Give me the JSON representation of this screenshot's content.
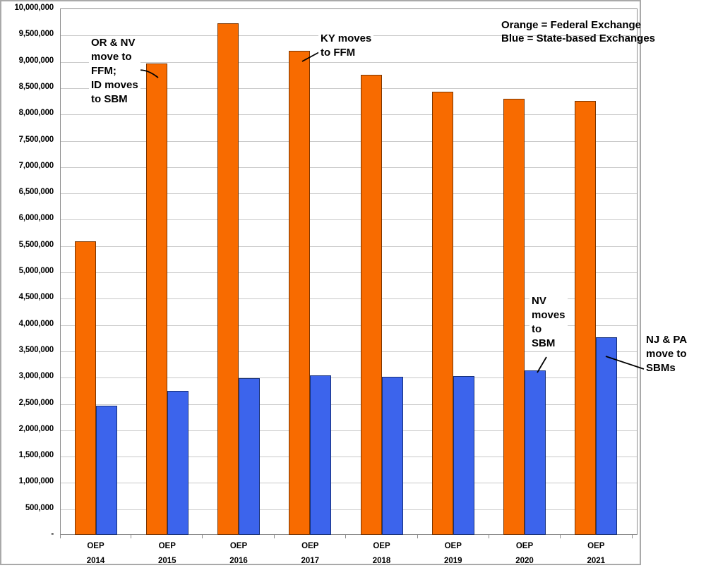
{
  "legend": {
    "lines": [
      "Orange = Federal Exchange",
      "Blue = State-based Exchanges"
    ]
  },
  "annotations": [
    {
      "id": "or-nv-ffm",
      "text": "OR & NV\nmove to\nFFM;\nID moves\nto SBM"
    },
    {
      "id": "ky-ffm",
      "text": "KY moves\nto FFM"
    },
    {
      "id": "nv-sbm",
      "text": "NV\nmoves\nto\nSBM"
    },
    {
      "id": "nj-pa-sbm",
      "text": "NJ & PA\nmove to\nSBMs"
    }
  ],
  "chart_data": {
    "type": "bar",
    "title": "",
    "xlabel": "",
    "ylabel": "",
    "categories": [
      "OEP 2014",
      "OEP 2015",
      "OEP 2016",
      "OEP 2017",
      "OEP 2018",
      "OEP 2019",
      "OEP 2020",
      "OEP 2021"
    ],
    "series": [
      {
        "name": "Federal Exchange",
        "color": "#F86B00",
        "border_color": "#7A3500",
        "values": [
          5580000,
          8960000,
          9720000,
          9200000,
          8740000,
          8420000,
          8290000,
          8250000
        ]
      },
      {
        "name": "State-based Exchanges",
        "color": "#3C64EC",
        "border_color": "#16307A",
        "values": [
          2450000,
          2730000,
          2970000,
          3030000,
          3000000,
          3020000,
          3120000,
          3750000
        ]
      }
    ],
    "ylim": [
      0,
      10000000
    ],
    "ytick_step": 500000,
    "ytick_labels": [
      "10,000,000",
      "9,500,000",
      "9,000,000",
      "8,500,000",
      "8,000,000",
      "7,500,000",
      "7,000,000",
      "6,500,000",
      "6,000,000",
      "5,500,000",
      "5,000,000",
      "4,500,000",
      "4,000,000",
      "3,500,000",
      "3,000,000",
      "2,500,000",
      "2,000,000",
      "1,500,000",
      "1,000,000",
      "500,000",
      "-"
    ],
    "grid": true,
    "legend_position": "top-right"
  }
}
